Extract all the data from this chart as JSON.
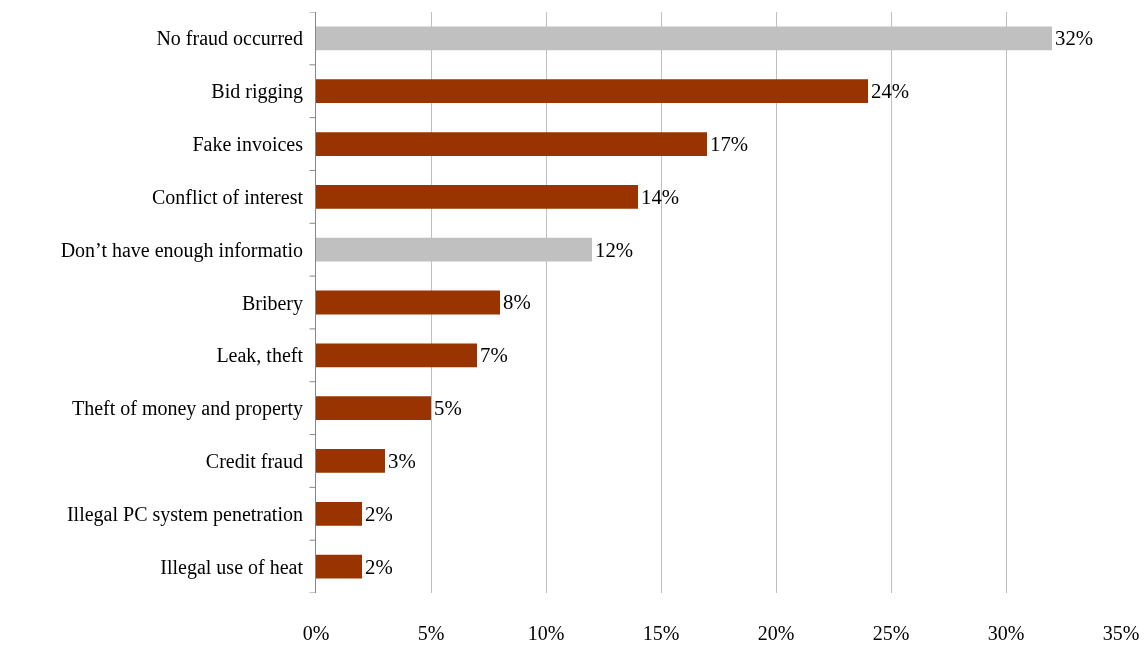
{
  "chart_data": {
    "type": "bar",
    "orientation": "horizontal",
    "categories": [
      "No fraud occurred",
      "Bid rigging",
      "Fake invoices",
      "Conflict of interest",
      "Don’t have enough informatio",
      "Bribery",
      "Leak, theft",
      "Theft of money and property",
      "Credit fraud",
      "Illegal PC system penetration",
      "Illegal use of heat"
    ],
    "values": [
      32,
      24,
      17,
      14,
      12,
      8,
      7,
      5,
      3,
      2,
      2
    ],
    "value_labels": [
      "32%",
      "24%",
      "17%",
      "14%",
      "12%",
      "8%",
      "7%",
      "5%",
      "3%",
      "2%",
      "2%"
    ],
    "colors": [
      "#c0c0c0",
      "#993300",
      "#993300",
      "#993300",
      "#c0c0c0",
      "#993300",
      "#993300",
      "#993300",
      "#993300",
      "#993300",
      "#993300"
    ],
    "xlim": [
      0,
      35
    ],
    "xticks": [
      {
        "value": 0,
        "label": "0%"
      },
      {
        "value": 5,
        "label": "5%"
      },
      {
        "value": 10,
        "label": "10%"
      },
      {
        "value": 15,
        "label": "15%"
      },
      {
        "value": 20,
        "label": "20%"
      },
      {
        "value": 25,
        "label": "25%"
      },
      {
        "value": 30,
        "label": "30%"
      },
      {
        "value": 35,
        "label": "35%"
      }
    ],
    "grid": "x"
  }
}
